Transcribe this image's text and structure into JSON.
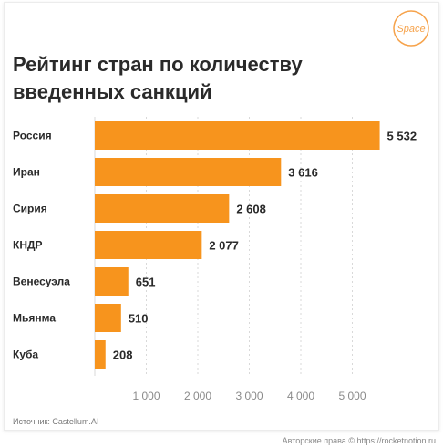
{
  "logo": {
    "text": "Space",
    "color": "#f6a24a"
  },
  "title": {
    "line1": "Рейтинг стран по количеству",
    "line2": "введенных санкций"
  },
  "source": "Источник: Castellum.AI",
  "watermark": "Авторские права © https://rocketnotion.ru",
  "colors": {
    "bar": "#f7941d",
    "grid": "#d9d9d9",
    "text": "#2a2a2a",
    "axis": "#8a8a8a"
  },
  "chart_data": {
    "type": "bar",
    "orientation": "horizontal",
    "categories": [
      "Россия",
      "Иран",
      "Сирия",
      "КНДР",
      "Венесуэла",
      "Мьянма",
      "Куба"
    ],
    "values": [
      5532,
      3616,
      2608,
      2077,
      651,
      510,
      208
    ],
    "value_labels": [
      "5 532",
      "3 616",
      "2 608",
      "2 077",
      "651",
      "510",
      "208"
    ],
    "xticks": [
      1000,
      2000,
      3000,
      4000,
      5000
    ],
    "xtick_labels": [
      "1 000",
      "2 000",
      "3 000",
      "4 000",
      "5 000"
    ],
    "xlim": [
      0,
      5700
    ],
    "grid": true,
    "title": "Рейтинг стран по количеству введенных санкций",
    "xlabel": "",
    "ylabel": ""
  }
}
